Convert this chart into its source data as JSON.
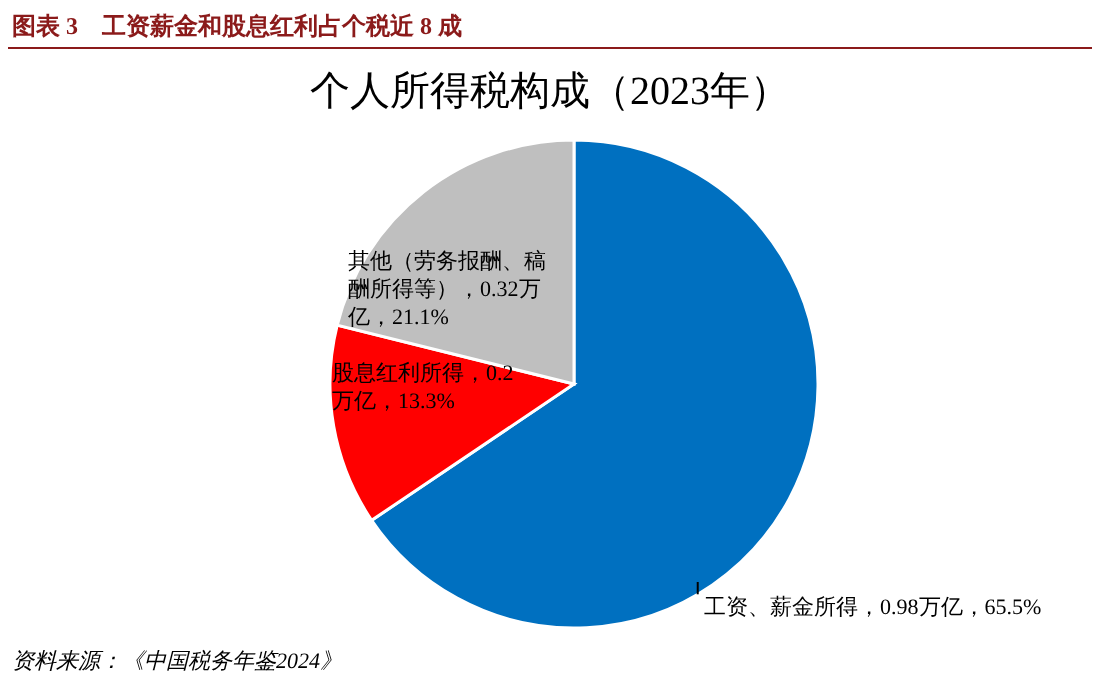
{
  "chart_data": {
    "type": "pie",
    "title": "图表 3　工资薪金和股息红利占个税近 8 成",
    "subtitle": "个人所得税构成（2023年）",
    "categories": [
      "工资、薪金所得",
      "股息红利所得",
      "其他（劳务报酬、稿酬所得等）"
    ],
    "values": [
      65.5,
      13.3,
      21.1
    ],
    "colors": [
      "#0070c0",
      "#ff0000",
      "#bfbfbf"
    ],
    "value_labels": [
      "0.98万亿，65.5%",
      "0.2万亿，13.3%",
      "0.32万亿，21.1%"
    ],
    "legend": false,
    "annotations": [
      "资料来源：《中国税务年鉴2024》"
    ]
  }
}
